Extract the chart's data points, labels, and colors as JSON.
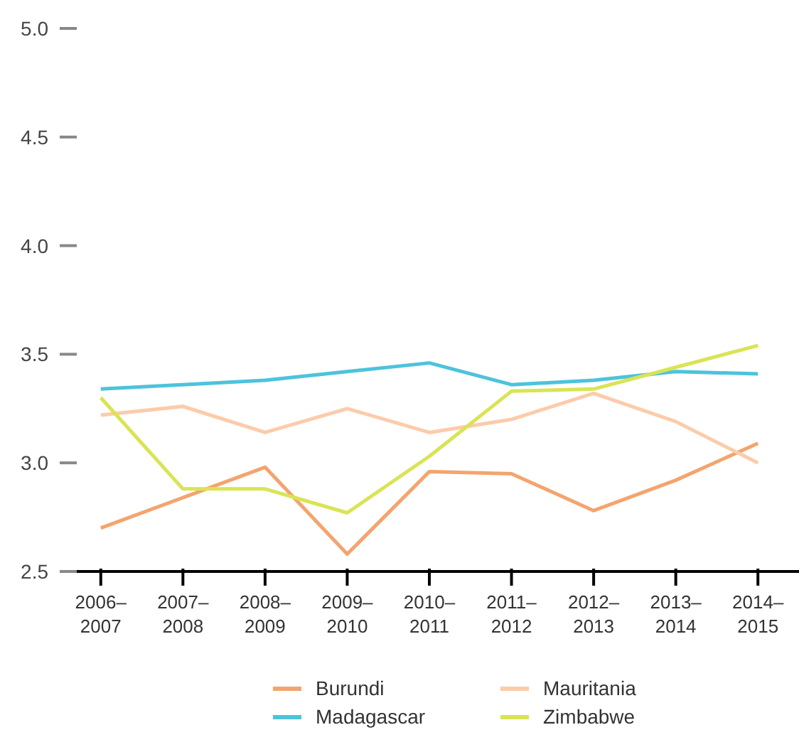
{
  "chart_data": {
    "type": "line",
    "categories": [
      "2006–2007",
      "2007–2008",
      "2008–2009",
      "2009–2010",
      "2010–2011",
      "2011–2012",
      "2012–2013",
      "2013–2014",
      "2014–2015"
    ],
    "series": [
      {
        "name": "Burundi",
        "color": "#f4a46e",
        "values": [
          2.7,
          2.84,
          2.98,
          2.58,
          2.96,
          2.95,
          2.78,
          2.92,
          3.09
        ]
      },
      {
        "name": "Madagascar",
        "color": "#4dc3dc",
        "values": [
          3.34,
          3.36,
          3.38,
          3.42,
          3.46,
          3.36,
          3.38,
          3.42,
          3.41
        ]
      },
      {
        "name": "Mauritania",
        "color": "#fdcbaa",
        "values": [
          3.22,
          3.26,
          3.14,
          3.25,
          3.14,
          3.2,
          3.32,
          3.19,
          3.0
        ]
      },
      {
        "name": "Zimbabwe",
        "color": "#d9e454",
        "values": [
          3.3,
          2.88,
          2.88,
          2.77,
          3.03,
          3.33,
          3.34,
          3.44,
          3.54
        ]
      }
    ],
    "ylim": [
      2.5,
      5.0
    ],
    "yticks": [
      {
        "value": 2.5,
        "label": "2.5"
      },
      {
        "value": 3.0,
        "label": "3.0"
      },
      {
        "value": 3.5,
        "label": "3.5"
      },
      {
        "value": 4.0,
        "label": "4.0"
      },
      {
        "value": 4.5,
        "label": "4.5"
      },
      {
        "value": 5.0,
        "label": "5.0"
      }
    ],
    "grid": false,
    "legend": "bottom",
    "marker": "none",
    "line_style": "solid"
  }
}
